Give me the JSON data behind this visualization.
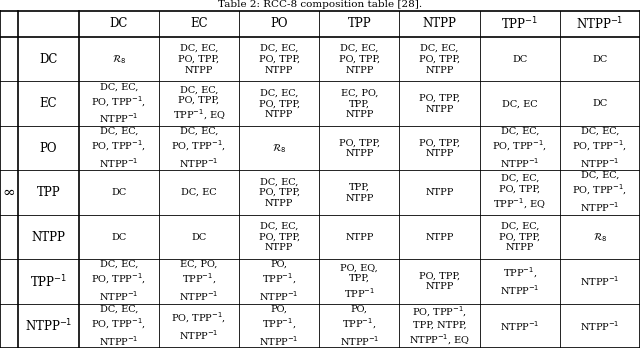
{
  "title": "Table 2: RCC-8 composition table [28].",
  "col_headers": [
    "",
    "DC",
    "EC",
    "PO",
    "TPP",
    "NTPP",
    "TPP$^{-1}$",
    "NTPP$^{-1}$"
  ],
  "row_headers": [
    "DC",
    "EC",
    "PO",
    "TPP",
    "NTPP",
    "TPP$^{-1}$",
    "NTPP$^{-1}$"
  ],
  "cells": [
    [
      "$\\mathcal{R}_8$",
      "DC, EC,\nPO, TPP,\nNTPP",
      "DC, EC,\nPO, TPP,\nNTPP",
      "DC, EC,\nPO, TPP,\nNTPP",
      "DC, EC,\nPO, TPP,\nNTPP",
      "DC",
      "DC"
    ],
    [
      "DC, EC,\nPO, TPP$^{-1}$,\nNTPP$^{-1}$",
      "DC, EC,\nPO, TPP,\nTPP$^{-1}$, EQ",
      "DC, EC,\nPO, TPP,\nNTPP",
      "EC, PO,\nTPP,\nNTPP",
      "PO, TPP,\nNTPP",
      "DC, EC",
      "DC"
    ],
    [
      "DC, EC,\nPO, TPP$^{-1}$,\nNTPP$^{-1}$",
      "DC, EC,\nPO, TPP$^{-1}$,\nNTPP$^{-1}$",
      "$\\mathcal{R}_8$",
      "PO, TPP,\nNTPP",
      "PO, TPP,\nNTPP",
      "DC, EC,\nPO, TPP$^{-1}$,\nNTPP$^{-1}$",
      "DC, EC,\nPO, TPP$^{-1}$,\nNTPP$^{-1}$"
    ],
    [
      "DC",
      "DC, EC",
      "DC, EC,\nPO, TPP,\nNTPP",
      "TPP,\nNTPP",
      "NTPP",
      "DC, EC,\nPO, TPP,\nTPP$^{-1}$, EQ",
      "DC, EC,\nPO, TPP$^{-1}$,\nNTPP$^{-1}$"
    ],
    [
      "DC",
      "DC",
      "DC, EC,\nPO, TPP,\nNTPP",
      "NTPP",
      "NTPP",
      "DC, EC,\nPO, TPP,\nNTPP",
      "$\\mathcal{R}_8$"
    ],
    [
      "DC, EC,\nPO, TPP$^{-1}$,\nNTPP$^{-1}$",
      "EC, PO,\nTPP$^{-1}$,\nNTPP$^{-1}$",
      "PO,\nTPP$^{-1}$,\nNTPP$^{-1}$",
      "PO, EQ,\nTPP,\nTPP$^{-1}$",
      "PO, TPP,\nNTPP",
      "TPP$^{-1}$,\nNTPP$^{-1}$",
      "NTPP$^{-1}$"
    ],
    [
      "DC, EC,\nPO, TPP$^{-1}$,\nNTPP$^{-1}$",
      "PO, TPP$^{-1}$,\nNTPP$^{-1}$",
      "PO,\nTPP$^{-1}$,\nNTPP$^{-1}$",
      "PO,\nTPP$^{-1}$,\nNTPP$^{-1}$",
      "PO, TPP$^{-1}$,\nTPP, NTPP,\nNTPP$^{-1}$, EQ",
      "NTPP$^{-1}$",
      "NTPP$^{-1}$"
    ]
  ],
  "infinity_symbol": "∞",
  "background_color": "#ffffff",
  "text_color": "#000000",
  "cell_fontsize": 7.0,
  "header_fontsize": 8.5,
  "title_fontsize": 7.5
}
